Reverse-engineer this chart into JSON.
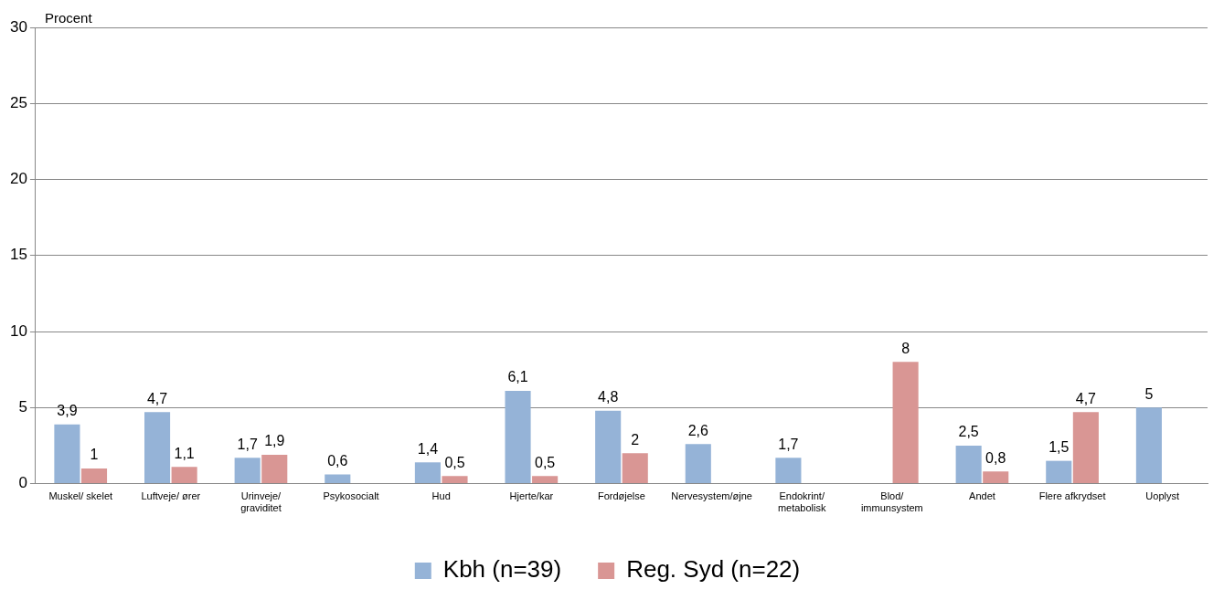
{
  "chart_data": {
    "type": "bar",
    "ylabel": "Procent",
    "categories": [
      "Muskel/ skelet",
      "Luftveje/ ører",
      "Urinveje/ graviditet",
      "Psykosocialt",
      "Hud",
      "Hjerte/kar",
      "Fordøjelse",
      "Nervesystem/øjne",
      "Endokrint/ metabolisk",
      "Blod/ immunsystem",
      "Andet",
      "Flere afkrydset",
      "Uoplyst"
    ],
    "series": [
      {
        "name": "Kbh (n=39)",
        "color": "#95b3d7",
        "values": [
          3.9,
          4.7,
          1.7,
          0.6,
          1.4,
          6.1,
          4.8,
          2.6,
          1.7,
          null,
          2.5,
          1.5,
          5
        ],
        "value_labels": [
          "3,9",
          "4,7",
          "1,7",
          "0,6",
          "1,4",
          "6,1",
          "4,8",
          "2,6",
          "1,7",
          null,
          "2,5",
          "1,5",
          "5"
        ]
      },
      {
        "name": "Reg. Syd (n=22)",
        "color": "#d99694",
        "values": [
          1,
          1.1,
          1.9,
          null,
          0.5,
          0.5,
          2,
          null,
          null,
          8,
          0.8,
          4.7,
          null
        ],
        "value_labels": [
          "1",
          "1,1",
          "1,9",
          null,
          "0,5",
          "0,5",
          "2",
          null,
          null,
          "8",
          "0,8",
          "4,7",
          null
        ]
      }
    ],
    "ylim": [
      0,
      30
    ],
    "yticks": [
      0,
      5,
      10,
      15,
      20,
      25,
      30
    ],
    "grid": "y",
    "legend": "bottom"
  }
}
